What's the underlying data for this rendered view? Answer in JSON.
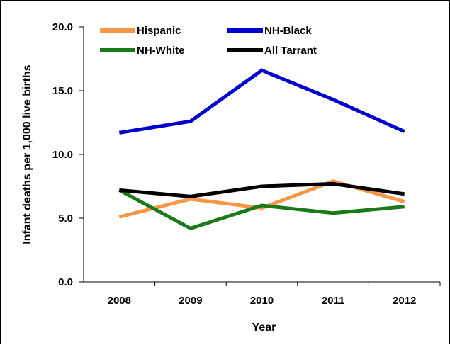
{
  "chart_data": {
    "type": "line",
    "title": "",
    "xlabel": "Year",
    "ylabel": "Infant deaths per 1,000 live births",
    "categories": [
      "2008",
      "2009",
      "2010",
      "2011",
      "2012"
    ],
    "ylim": [
      0,
      20
    ],
    "y_ticks": [
      "0.0",
      "5.0",
      "10.0",
      "15.0",
      "20.0"
    ],
    "grid": false,
    "legend_position": "top",
    "series": [
      {
        "name": "Hispanic",
        "color": "#F79646",
        "values": [
          5.1,
          6.5,
          5.8,
          7.9,
          6.3
        ]
      },
      {
        "name": "NH-Black",
        "color": "#0000CC",
        "values": [
          11.7,
          12.6,
          16.6,
          14.3,
          11.8
        ]
      },
      {
        "name": "NH-White",
        "color": "#1A7A1A",
        "values": [
          7.2,
          4.2,
          6.0,
          5.4,
          5.9
        ]
      },
      {
        "name": "All Tarrant",
        "color": "#000000",
        "values": [
          7.2,
          6.7,
          7.5,
          7.7,
          6.9
        ]
      }
    ]
  }
}
